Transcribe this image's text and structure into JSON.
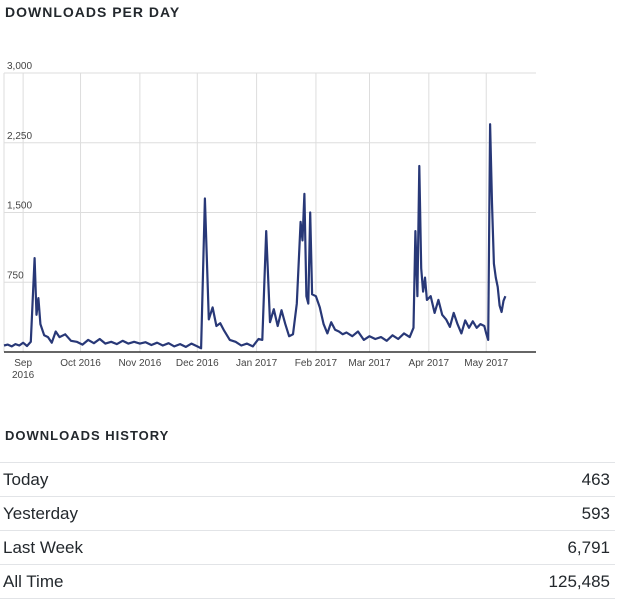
{
  "per_day": {
    "title": "DOWNLOADS PER DAY"
  },
  "history": {
    "title": "DOWNLOADS HISTORY",
    "rows": [
      {
        "label": "Today",
        "value": "463"
      },
      {
        "label": "Yesterday",
        "value": "593"
      },
      {
        "label": "Last Week",
        "value": "6,791"
      },
      {
        "label": "All Time",
        "value": "125,485"
      }
    ]
  },
  "colors": {
    "line": "#283877",
    "grid": "#dddddd",
    "axis": "#333333"
  },
  "chart_data": {
    "type": "line",
    "title": "DOWNLOADS PER DAY",
    "xlabel": "",
    "ylabel": "",
    "ylim": [
      0,
      3000
    ],
    "xlim": [
      "2016-08-22",
      "2017-05-27"
    ],
    "y_ticks": [
      "750",
      "1,500",
      "2,250",
      "3,000"
    ],
    "y_tick_values": [
      750,
      1500,
      2250,
      3000
    ],
    "x_ticks": [
      {
        "date": "2016-09-01",
        "label": [
          "Sep",
          "2016"
        ]
      },
      {
        "date": "2016-10-01",
        "label": [
          "Oct 2016"
        ]
      },
      {
        "date": "2016-11-01",
        "label": [
          "Nov 2016"
        ]
      },
      {
        "date": "2016-12-01",
        "label": [
          "Dec 2016"
        ]
      },
      {
        "date": "2017-01-01",
        "label": [
          "Jan 2017"
        ]
      },
      {
        "date": "2017-02-01",
        "label": [
          "Feb 2017"
        ]
      },
      {
        "date": "2017-03-01",
        "label": [
          "Mar 2017"
        ]
      },
      {
        "date": "2017-04-01",
        "label": [
          "Apr 2017"
        ]
      },
      {
        "date": "2017-05-01",
        "label": [
          "May 2017"
        ]
      }
    ],
    "grid": true,
    "series": [
      {
        "points": [
          [
            "2016-08-22",
            70
          ],
          [
            "2016-08-24",
            80
          ],
          [
            "2016-08-26",
            60
          ],
          [
            "2016-08-28",
            85
          ],
          [
            "2016-08-30",
            70
          ],
          [
            "2016-09-01",
            100
          ],
          [
            "2016-09-03",
            65
          ],
          [
            "2016-09-05",
            110
          ],
          [
            "2016-09-07",
            1010
          ],
          [
            "2016-09-08",
            400
          ],
          [
            "2016-09-09",
            580
          ],
          [
            "2016-09-10",
            300
          ],
          [
            "2016-09-12",
            180
          ],
          [
            "2016-09-14",
            160
          ],
          [
            "2016-09-16",
            100
          ],
          [
            "2016-09-18",
            220
          ],
          [
            "2016-09-20",
            160
          ],
          [
            "2016-09-23",
            190
          ],
          [
            "2016-09-26",
            120
          ],
          [
            "2016-09-29",
            110
          ],
          [
            "2016-10-02",
            80
          ],
          [
            "2016-10-05",
            130
          ],
          [
            "2016-10-08",
            95
          ],
          [
            "2016-10-11",
            140
          ],
          [
            "2016-10-14",
            90
          ],
          [
            "2016-10-17",
            110
          ],
          [
            "2016-10-20",
            85
          ],
          [
            "2016-10-23",
            120
          ],
          [
            "2016-10-26",
            90
          ],
          [
            "2016-10-29",
            110
          ],
          [
            "2016-11-01",
            90
          ],
          [
            "2016-11-04",
            105
          ],
          [
            "2016-11-07",
            75
          ],
          [
            "2016-11-10",
            100
          ],
          [
            "2016-11-13",
            70
          ],
          [
            "2016-11-16",
            95
          ],
          [
            "2016-11-19",
            60
          ],
          [
            "2016-11-22",
            85
          ],
          [
            "2016-11-25",
            55
          ],
          [
            "2016-11-28",
            90
          ],
          [
            "2016-12-01",
            60
          ],
          [
            "2016-12-03",
            40
          ],
          [
            "2016-12-05",
            1650
          ],
          [
            "2016-12-07",
            350
          ],
          [
            "2016-12-09",
            480
          ],
          [
            "2016-12-11",
            280
          ],
          [
            "2016-12-13",
            310
          ],
          [
            "2016-12-15",
            230
          ],
          [
            "2016-12-18",
            130
          ],
          [
            "2016-12-21",
            110
          ],
          [
            "2016-12-24",
            70
          ],
          [
            "2016-12-27",
            90
          ],
          [
            "2016-12-30",
            60
          ],
          [
            "2017-01-02",
            140
          ],
          [
            "2017-01-04",
            130
          ],
          [
            "2017-01-06",
            1300
          ],
          [
            "2017-01-08",
            320
          ],
          [
            "2017-01-10",
            460
          ],
          [
            "2017-01-12",
            280
          ],
          [
            "2017-01-14",
            450
          ],
          [
            "2017-01-16",
            300
          ],
          [
            "2017-01-18",
            170
          ],
          [
            "2017-01-20",
            190
          ],
          [
            "2017-01-22",
            520
          ],
          [
            "2017-01-24",
            1400
          ],
          [
            "2017-01-25",
            1200
          ],
          [
            "2017-01-26",
            1700
          ],
          [
            "2017-01-27",
            600
          ],
          [
            "2017-01-28",
            520
          ],
          [
            "2017-01-29",
            1500
          ],
          [
            "2017-01-30",
            620
          ],
          [
            "2017-02-01",
            600
          ],
          [
            "2017-02-03",
            480
          ],
          [
            "2017-02-05",
            300
          ],
          [
            "2017-02-07",
            200
          ],
          [
            "2017-02-09",
            320
          ],
          [
            "2017-02-11",
            240
          ],
          [
            "2017-02-13",
            220
          ],
          [
            "2017-02-15",
            190
          ],
          [
            "2017-02-17",
            210
          ],
          [
            "2017-02-20",
            170
          ],
          [
            "2017-02-23",
            220
          ],
          [
            "2017-02-26",
            130
          ],
          [
            "2017-03-01",
            170
          ],
          [
            "2017-03-04",
            140
          ],
          [
            "2017-03-07",
            160
          ],
          [
            "2017-03-10",
            120
          ],
          [
            "2017-03-13",
            180
          ],
          [
            "2017-03-16",
            140
          ],
          [
            "2017-03-19",
            200
          ],
          [
            "2017-03-22",
            160
          ],
          [
            "2017-03-24",
            260
          ],
          [
            "2017-03-25",
            1300
          ],
          [
            "2017-03-26",
            600
          ],
          [
            "2017-03-27",
            2000
          ],
          [
            "2017-03-28",
            900
          ],
          [
            "2017-03-29",
            650
          ],
          [
            "2017-03-30",
            800
          ],
          [
            "2017-03-31",
            560
          ],
          [
            "2017-04-02",
            600
          ],
          [
            "2017-04-04",
            420
          ],
          [
            "2017-04-06",
            560
          ],
          [
            "2017-04-08",
            400
          ],
          [
            "2017-04-10",
            350
          ],
          [
            "2017-04-12",
            270
          ],
          [
            "2017-04-14",
            420
          ],
          [
            "2017-04-16",
            300
          ],
          [
            "2017-04-18",
            200
          ],
          [
            "2017-04-20",
            340
          ],
          [
            "2017-04-22",
            260
          ],
          [
            "2017-04-24",
            330
          ],
          [
            "2017-04-26",
            260
          ],
          [
            "2017-04-28",
            300
          ],
          [
            "2017-04-30",
            280
          ],
          [
            "2017-05-01",
            200
          ],
          [
            "2017-05-02",
            130
          ],
          [
            "2017-05-03",
            2450
          ],
          [
            "2017-05-04",
            1600
          ],
          [
            "2017-05-05",
            950
          ],
          [
            "2017-05-06",
            800
          ],
          [
            "2017-05-07",
            700
          ],
          [
            "2017-05-08",
            500
          ],
          [
            "2017-05-09",
            430
          ],
          [
            "2017-05-10",
            550
          ],
          [
            "2017-05-11",
            600
          ]
        ]
      }
    ]
  }
}
